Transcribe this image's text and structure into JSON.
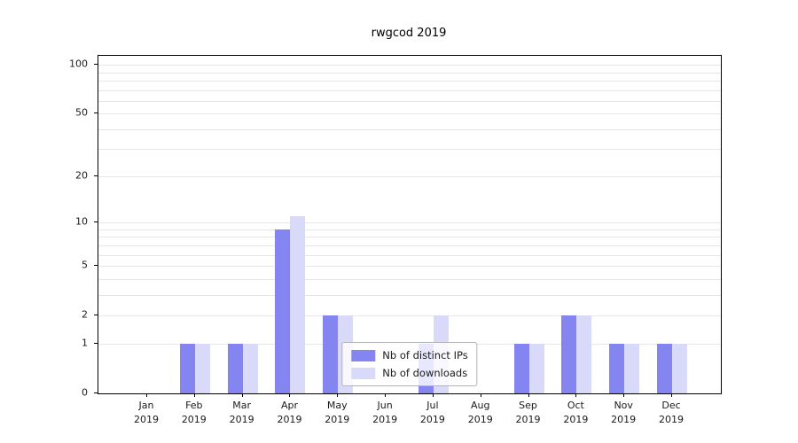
{
  "chart_data": {
    "type": "bar",
    "title": "rwgcod 2019",
    "xlabel": "",
    "ylabel": "",
    "year": "2019",
    "categories": [
      "Jan",
      "Feb",
      "Mar",
      "Apr",
      "May",
      "Jun",
      "Jul",
      "Aug",
      "Sep",
      "Oct",
      "Nov",
      "Dec"
    ],
    "series": [
      {
        "name": "Nb of distinct IPs",
        "color": "#8585f2",
        "values": [
          0,
          1,
          1,
          9,
          2,
          0,
          1,
          0,
          1,
          2,
          1,
          1
        ]
      },
      {
        "name": "Nb of downloads",
        "color": "#d9d9f9",
        "values": [
          0,
          1,
          1,
          11,
          2,
          0,
          2,
          0,
          1,
          2,
          1,
          1
        ]
      }
    ],
    "y_ticks": [
      0,
      1,
      2,
      5,
      10,
      20,
      50,
      100
    ],
    "scale": "log1p",
    "ylim": [
      0,
      113
    ],
    "grid": true,
    "legend_position": "lower center"
  }
}
